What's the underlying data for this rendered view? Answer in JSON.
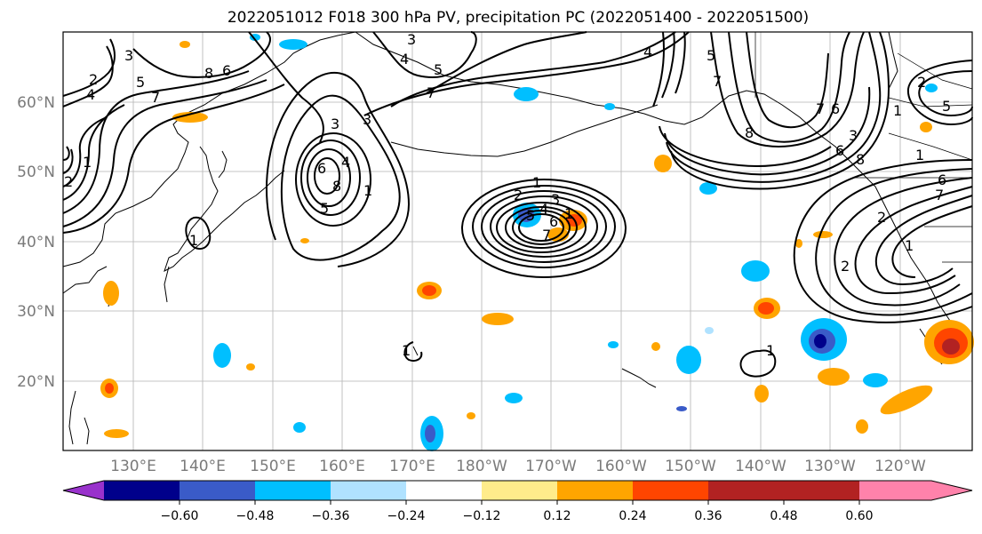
{
  "title": "2022051012 F018 300 hPa PV, precipitation PC (2022051400 - 2022051500)",
  "lat_labels": [
    "60°N",
    "50°N",
    "40°N",
    "30°N",
    "20°N"
  ],
  "lon_labels": [
    "130°E",
    "140°E",
    "150°E",
    "160°E",
    "170°E",
    "180°W",
    "170°W",
    "160°W",
    "150°W",
    "140°W",
    "130°W",
    "120°W"
  ],
  "colorbar": {
    "colors": [
      "#9932cc",
      "#00008b",
      "#3a5bc8",
      "#00bfff",
      "#b0e2ff",
      "#ffffff",
      "#ffec8b",
      "#ffa500",
      "#ff4500",
      "#b22222",
      "#ff82ab"
    ],
    "ticks": [
      "−0.60",
      "−0.48",
      "−0.36",
      "−0.24",
      "−0.12",
      "0.12",
      "0.24",
      "0.36",
      "0.48",
      "0.60"
    ]
  },
  "contour_labels": [
    "2",
    "4",
    "3",
    "5",
    "8",
    "6",
    "7",
    "1",
    "3",
    "4",
    "5",
    "7",
    "3",
    "4",
    "6",
    "3",
    "8",
    "5",
    "1",
    "2",
    "4",
    "3",
    "5",
    "6",
    "1",
    "7",
    "1",
    "1",
    "4",
    "7",
    "5",
    "8",
    "7",
    "6",
    "2",
    "1",
    "5",
    "6",
    "2",
    "1",
    "6",
    "3",
    "8",
    "1",
    "7",
    "2",
    "1",
    "2",
    "1"
  ]
}
